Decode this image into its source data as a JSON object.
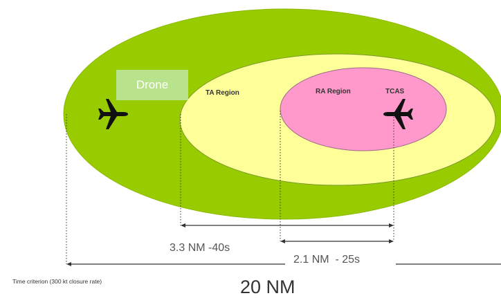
{
  "colors": {
    "outer_region": "#99cc00",
    "ta_region": "#ffff99",
    "ra_region": "#ff99cc",
    "drone_label_bg": "#b9e28c",
    "dimension_line": "#333333"
  },
  "labels": {
    "drone": "Drone",
    "ta_region": "TA Region",
    "ra_region": "RA Region",
    "tcas": "TCAS"
  },
  "measurements": {
    "ta_distance": "3.3 NM -40s",
    "ra_distance": "2.1 NM  - 25s",
    "total_distance": "20 NM"
  },
  "caption": "Time criterion (300 kt closure rate)",
  "icons": {
    "intruder": "airplane-icon",
    "own_aircraft": "airplane-icon"
  }
}
